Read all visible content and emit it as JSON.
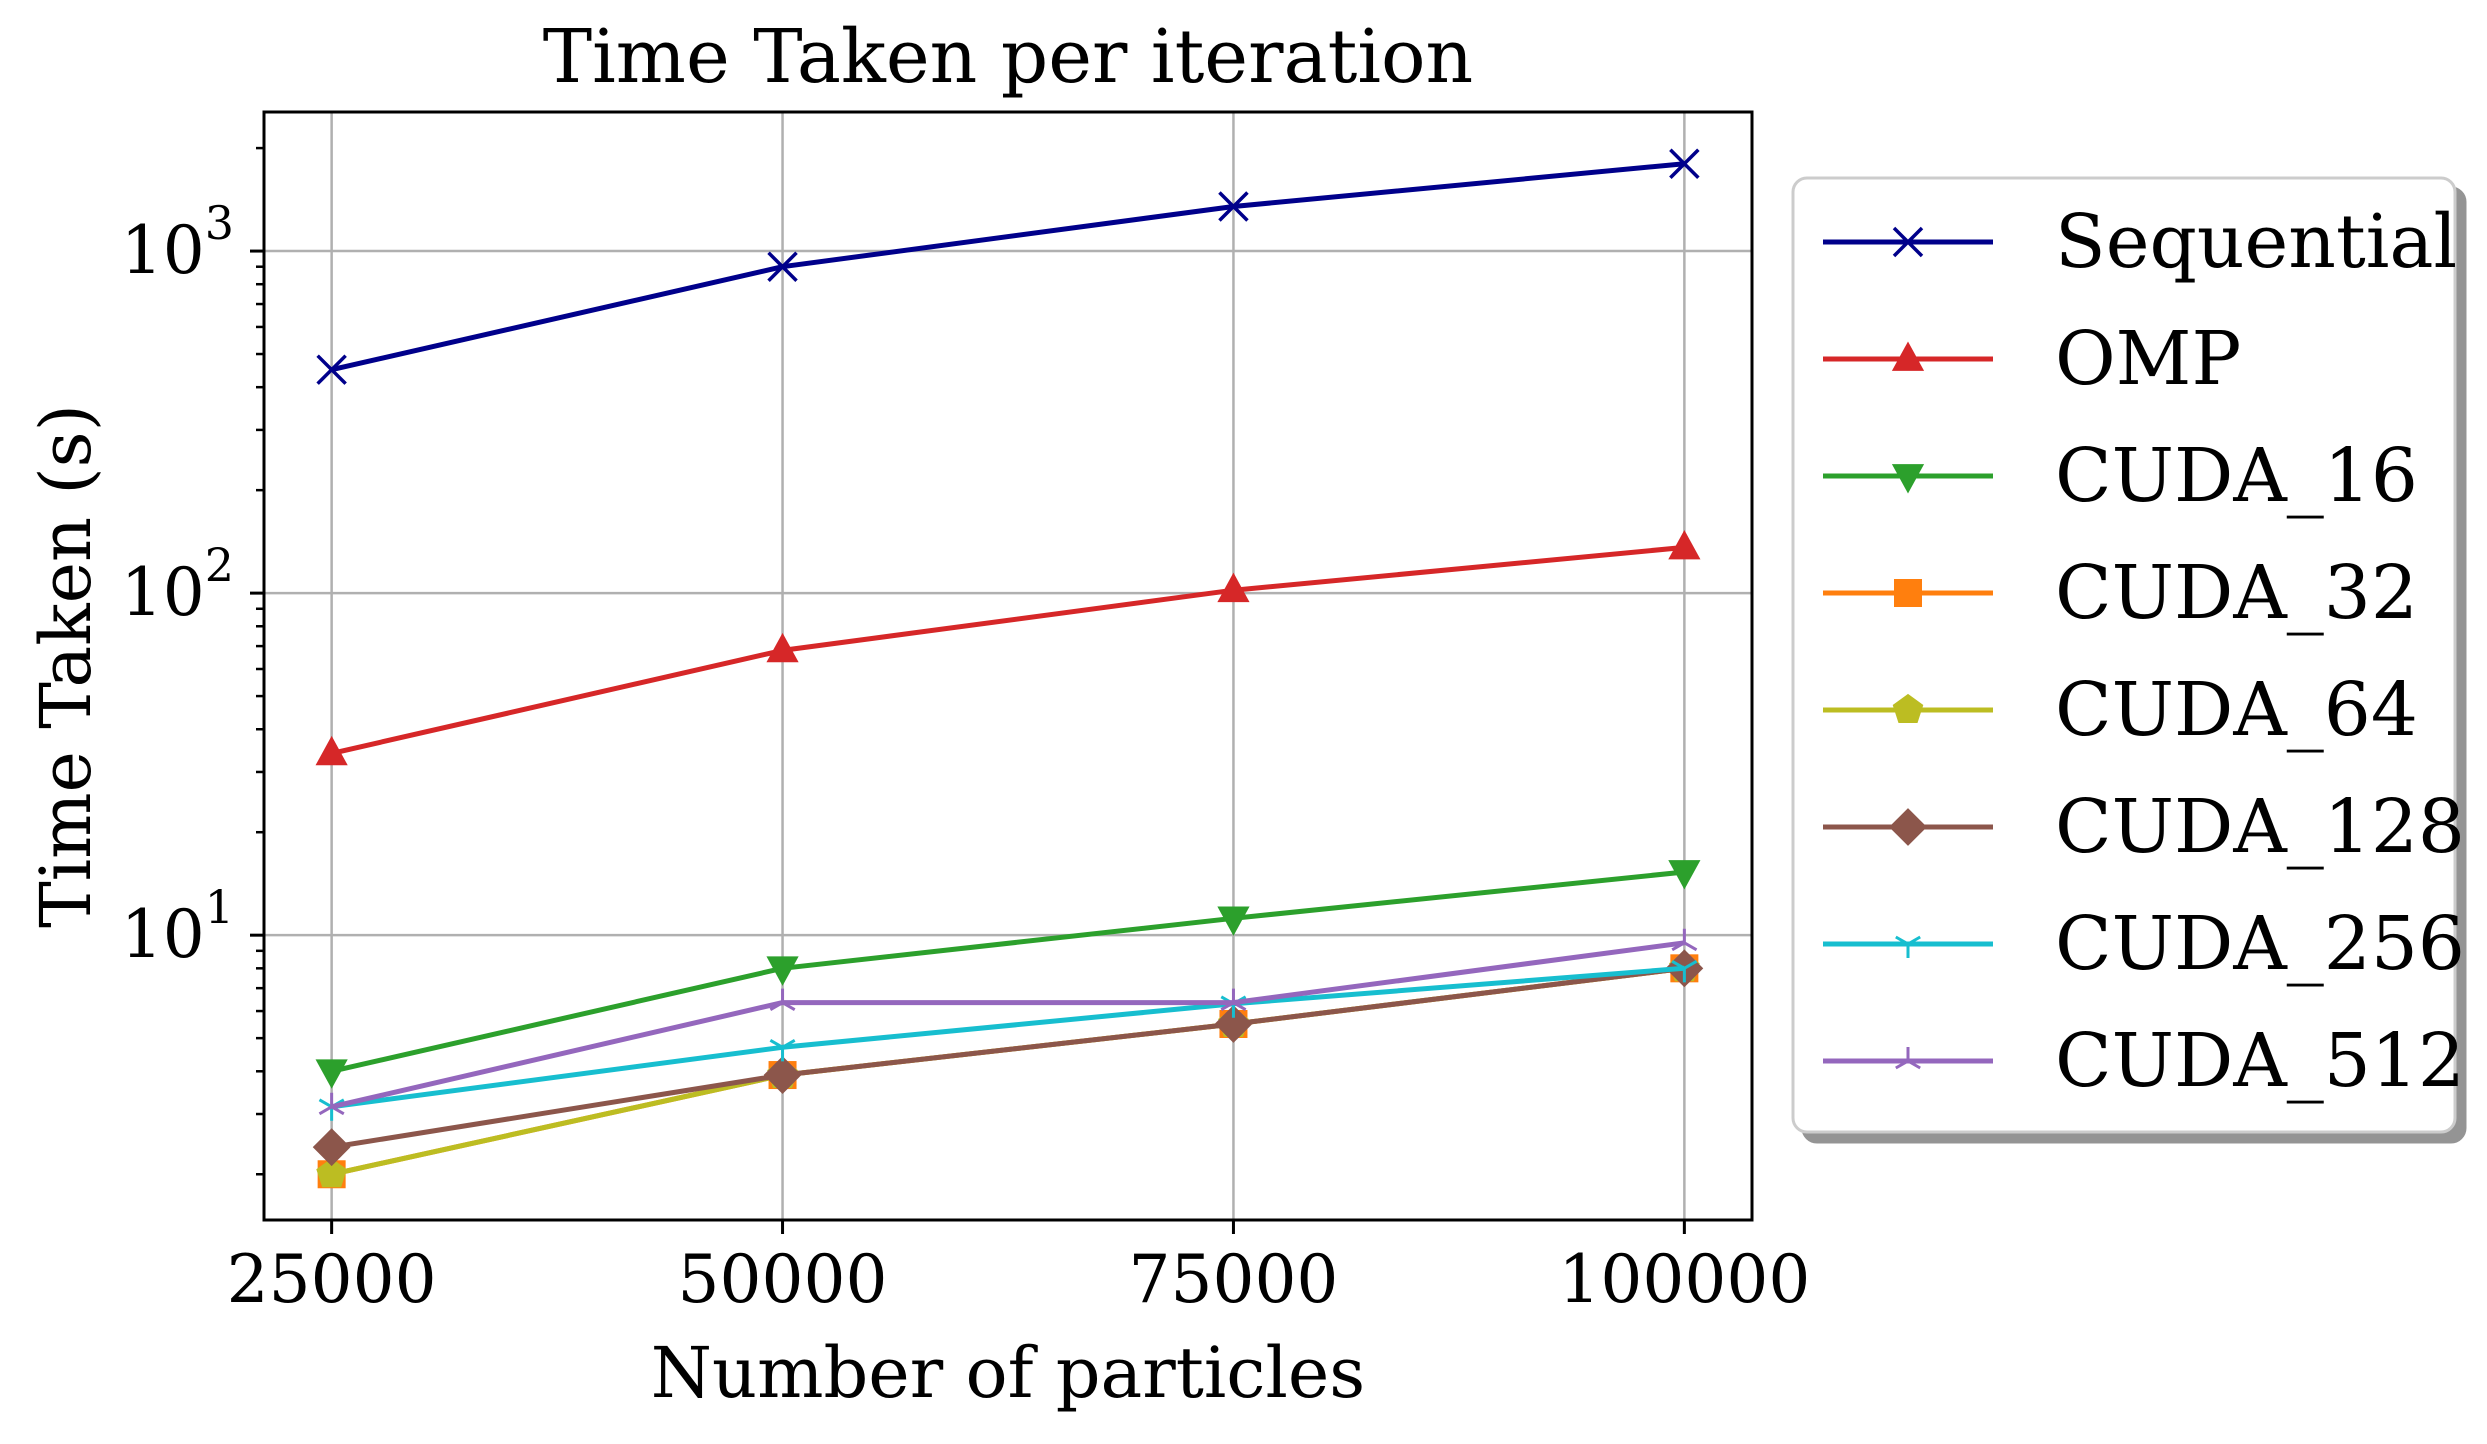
{
  "chart_data": {
    "type": "line",
    "title": "Time Taken per iteration",
    "xlabel": "Number of particles",
    "ylabel": "Time Taken (s)",
    "x": [
      25000,
      50000,
      75000,
      100000
    ],
    "x_ticks": [
      "25000",
      "50000",
      "75000",
      "100000"
    ],
    "y_scale": "log",
    "y_ticks": [
      {
        "value": 10,
        "base": "10",
        "exp": "1"
      },
      {
        "value": 100,
        "base": "10",
        "exp": "2"
      },
      {
        "value": 1000,
        "base": "10",
        "exp": "3"
      }
    ],
    "xlim": [
      21250,
      103750
    ],
    "ylim": [
      1.47,
      2550
    ],
    "grid": true,
    "legend_position": "outside right",
    "series": [
      {
        "name": "Sequential",
        "values": [
          450,
          900,
          1350,
          1800
        ],
        "color": "#00008b",
        "marker": "x"
      },
      {
        "name": "OMP",
        "values": [
          34,
          68,
          102,
          136
        ],
        "color": "#d62728",
        "marker": "triangle-up"
      },
      {
        "name": "CUDA_16",
        "values": [
          4.0,
          8.0,
          11.2,
          15.3
        ],
        "color": "#2ca02c",
        "marker": "triangle-down"
      },
      {
        "name": "CUDA_32",
        "values": [
          2.0,
          3.9,
          5.5,
          8.0
        ],
        "color": "#ff7f0e",
        "marker": "square"
      },
      {
        "name": "CUDA_64",
        "values": [
          2.0,
          3.9,
          5.5,
          8.0
        ],
        "color": "#bcbd22",
        "marker": "pentagon"
      },
      {
        "name": "CUDA_128",
        "values": [
          2.4,
          3.9,
          5.5,
          8.0
        ],
        "color": "#8c564b",
        "marker": "diamond"
      },
      {
        "name": "CUDA_256",
        "values": [
          3.15,
          4.7,
          6.3,
          8.0
        ],
        "color": "#17becf",
        "marker": "tri-down"
      },
      {
        "name": "CUDA_512",
        "values": [
          3.15,
          6.35,
          6.35,
          9.5
        ],
        "color": "#9467bd",
        "marker": "tri-up"
      }
    ]
  }
}
